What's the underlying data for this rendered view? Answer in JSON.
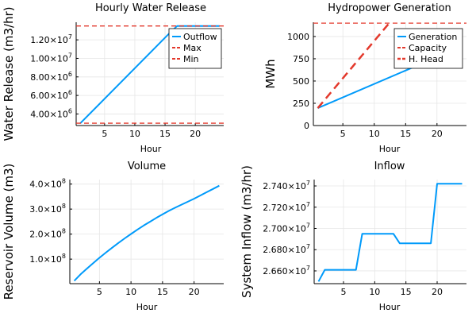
{
  "colors": {
    "blue": "#009AFA",
    "red": "#E3392C",
    "grid": "#E6E6E6",
    "axis": "#000000"
  },
  "chart_data": [
    {
      "type": "line",
      "title": "Hourly Water Release",
      "xlabel": "Hour",
      "ylabel": "Water Release (m3/hr)",
      "xlim": [
        0.3,
        24.7
      ],
      "ylim": [
        2750000,
        13900000
      ],
      "x_ticks": [
        5,
        10,
        15,
        20
      ],
      "x_tick_labels": [
        "5",
        "10",
        "15",
        "20"
      ],
      "y_ticks": [
        4000000,
        6000000,
        8000000,
        10000000,
        12000000
      ],
      "y_tick_labels": [
        {
          "mant": "4.00×10",
          "exp": "6"
        },
        {
          "mant": "6.00×10",
          "exp": "6"
        },
        {
          "mant": "8.00×10",
          "exp": "6"
        },
        {
          "mant": "1.00×10",
          "exp": "7"
        },
        {
          "mant": "1.20×10",
          "exp": "7"
        }
      ],
      "grid": true,
      "legend_position": "top-right",
      "series": [
        {
          "name": "Outflow",
          "style": "solid",
          "x": [
            1,
            16,
            17,
            24
          ],
          "y": [
            3000000,
            12900000,
            13500000,
            13500000
          ]
        },
        {
          "name": "Max",
          "style": "dashed",
          "hline": 13500000
        },
        {
          "name": "Min",
          "style": "dashed",
          "hline": 3000000
        }
      ]
    },
    {
      "type": "line",
      "title": "Hydropower Generation",
      "xlabel": "Hour",
      "ylabel": "MWh",
      "xlim": [
        0.3,
        24.7
      ],
      "ylim": [
        0,
        1160
      ],
      "x_ticks": [
        5,
        10,
        15,
        20
      ],
      "x_tick_labels": [
        "5",
        "10",
        "15",
        "20"
      ],
      "y_ticks": [
        0,
        250,
        500,
        750,
        1000
      ],
      "y_tick_labels": [
        {
          "mant": "0",
          "exp": ""
        },
        {
          "mant": "250",
          "exp": ""
        },
        {
          "mant": "500",
          "exp": ""
        },
        {
          "mant": "750",
          "exp": ""
        },
        {
          "mant": "1000",
          "exp": ""
        }
      ],
      "grid": true,
      "legend_position": "top-right",
      "series": [
        {
          "name": "Generation",
          "style": "solid",
          "x": [
            1,
            24
          ],
          "y": [
            195,
            890
          ]
        },
        {
          "name": "Capacity",
          "style": "dashed",
          "hline": 1150
        },
        {
          "name": "H. Head",
          "style": "dashed-thick",
          "x": [
            1,
            12.5
          ],
          "y": [
            195,
            1160
          ]
        }
      ]
    },
    {
      "type": "line",
      "title": "Volume",
      "xlabel": "Hour",
      "ylabel": "Reservoir Volume (m3)",
      "xlim": [
        0.3,
        24.7
      ],
      "ylim": [
        2000000,
        418000000
      ],
      "x_ticks": [
        5,
        10,
        15,
        20
      ],
      "x_tick_labels": [
        "5",
        "10",
        "15",
        "20"
      ],
      "y_ticks": [
        100000000,
        200000000,
        300000000,
        400000000
      ],
      "y_tick_labels": [
        {
          "mant": "1.0×10",
          "exp": "8"
        },
        {
          "mant": "2.0×10",
          "exp": "8"
        },
        {
          "mant": "3.0×10",
          "exp": "8"
        },
        {
          "mant": "4.0×10",
          "exp": "8"
        }
      ],
      "grid": true,
      "series": [
        {
          "name": "",
          "style": "solid",
          "x": [
            1,
            2,
            3,
            4,
            5,
            6,
            7,
            8,
            9,
            10,
            11,
            12,
            13,
            14,
            15,
            16,
            17,
            18,
            19,
            20,
            21,
            22,
            23,
            24
          ],
          "y": [
            13500000,
            39000000,
            62000000,
            84000000,
            105500000,
            126000000,
            145500000,
            164500000,
            183000000,
            200500000,
            217500000,
            234000000,
            249500000,
            264500000,
            279000000,
            293000000,
            305500000,
            317500000,
            329500000,
            341500000,
            354500000,
            367500000,
            380500000,
            393500000
          ]
        }
      ]
    },
    {
      "type": "line",
      "title": "Inflow",
      "xlabel": "Hour",
      "ylabel": "System Inflow (m3/hr)",
      "xlim": [
        0.3,
        24.7
      ],
      "ylim": [
        26480000,
        27460000
      ],
      "x_ticks": [
        5,
        10,
        15,
        20
      ],
      "x_tick_labels": [
        "5",
        "10",
        "15",
        "20"
      ],
      "y_ticks": [
        26600000,
        26800000,
        27000000,
        27200000,
        27400000
      ],
      "y_tick_labels": [
        {
          "mant": "2.660×10",
          "exp": "7"
        },
        {
          "mant": "2.680×10",
          "exp": "7"
        },
        {
          "mant": "2.700×10",
          "exp": "7"
        },
        {
          "mant": "2.720×10",
          "exp": "7"
        },
        {
          "mant": "2.740×10",
          "exp": "7"
        }
      ],
      "grid": true,
      "series": [
        {
          "name": "",
          "style": "solid",
          "x": [
            1,
            2,
            7,
            8,
            13,
            14,
            19,
            20,
            24
          ],
          "y": [
            26500000,
            26610000,
            26610000,
            26950000,
            26950000,
            26860000,
            26860000,
            27420000,
            27420000
          ]
        }
      ]
    }
  ]
}
